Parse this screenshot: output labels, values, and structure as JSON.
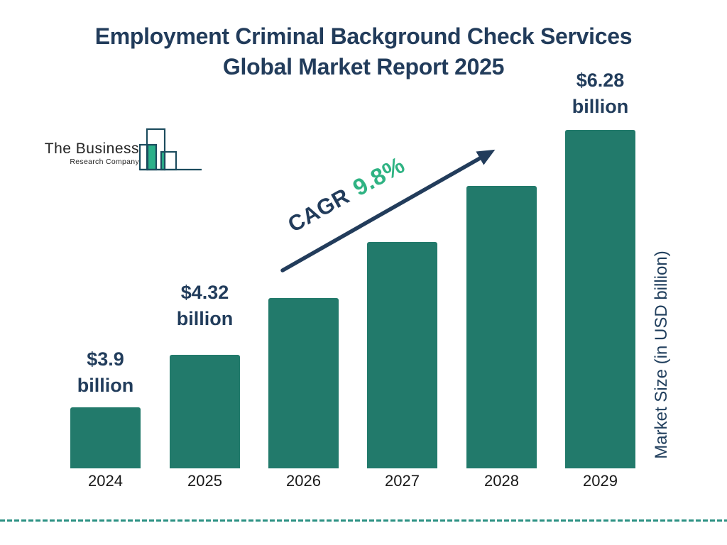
{
  "title": {
    "line1": "Employment Criminal Background Check Services",
    "line2": "Global Market Report 2025"
  },
  "logo": {
    "name": "The Business",
    "subtitle": "Research Company"
  },
  "chart_data": {
    "type": "bar",
    "title": "Employment Criminal Background Check Services Global Market Report 2025",
    "categories": [
      "2024",
      "2025",
      "2026",
      "2027",
      "2028",
      "2029"
    ],
    "bars": [
      {
        "year": "2024",
        "value": 3.9,
        "label_lines": [
          "$3.9",
          "billion"
        ]
      },
      {
        "year": "2025",
        "value": 4.32,
        "label_lines": [
          "$4.32",
          "billion"
        ]
      },
      {
        "year": "2026",
        "label_lines": []
      },
      {
        "year": "2027",
        "label_lines": []
      },
      {
        "year": "2028",
        "label_lines": []
      },
      {
        "year": "2029",
        "value": 6.28,
        "label_lines": [
          "$6.28",
          "billion"
        ]
      }
    ],
    "unit": "USD billion",
    "cagr_prefix": "CAGR",
    "cagr_value": "9.8%",
    "xlabel": "",
    "ylabel": "Market Size (in USD billion)",
    "legend": false,
    "grid": false,
    "bar_color": "#227A6B",
    "accent_green": "#2FB383",
    "navy": "#223C5B",
    "dashed_line_color": "#2B9183",
    "logo_stroke": "#1C4C5E",
    "logo_green": "#2BB08A"
  }
}
